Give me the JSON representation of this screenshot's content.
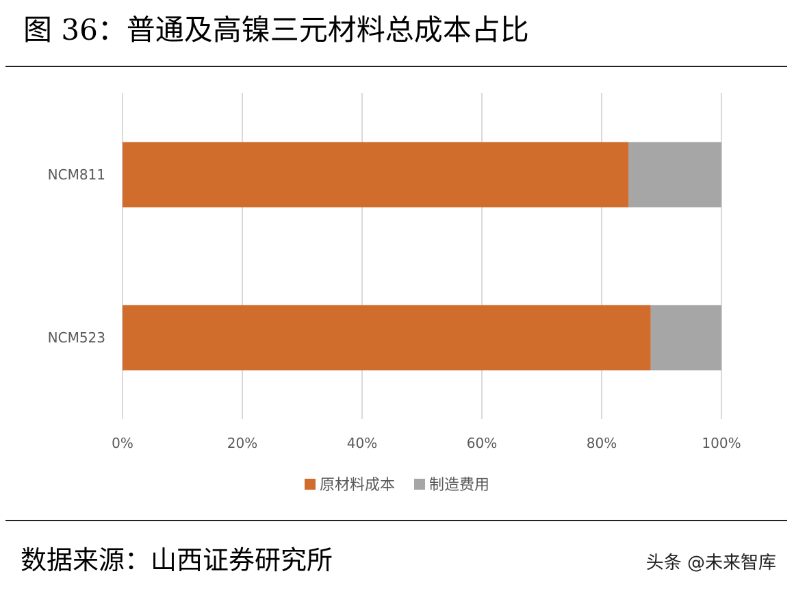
{
  "title": "图 36：普通及高镍三元材料总成本占比",
  "source": "数据来源：山西证券研究所",
  "watermark": "头条 @未来智库",
  "colors": {
    "raw_material": "#d06c2c",
    "manufacturing": "#a6a6a6",
    "grid": "#d9d9d9",
    "axis_text": "#595959"
  },
  "chart_data": {
    "type": "bar",
    "orientation": "horizontal",
    "stacked": "percent",
    "categories": [
      "NCM811",
      "NCM523"
    ],
    "series": [
      {
        "name": "原材料成本",
        "values": [
          84.5,
          88.2
        ]
      },
      {
        "name": "制造费用",
        "values": [
          15.5,
          11.8
        ]
      }
    ],
    "xlim": [
      0,
      100
    ],
    "xticks": [
      "0%",
      "20%",
      "40%",
      "60%",
      "80%",
      "100%"
    ],
    "grid": true,
    "legend_position": "bottom",
    "title": "",
    "xlabel": "",
    "ylabel": ""
  }
}
